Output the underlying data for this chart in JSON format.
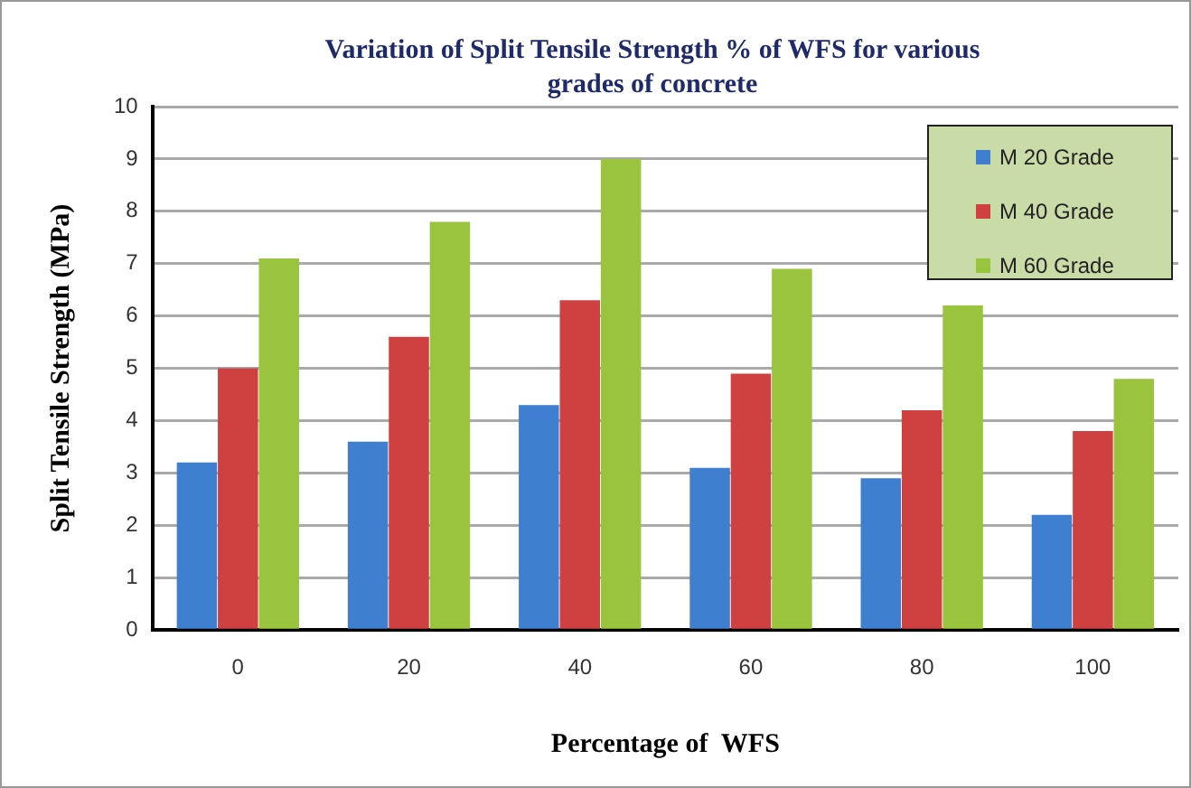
{
  "chart_data": {
    "type": "bar",
    "title": "Variation of Split Tensile Strength  % of WFS for various grades of concrete",
    "xlabel": "Percentage of  WFS",
    "ylabel": "Split Tensile Strength (MPa)",
    "categories": [
      "0",
      "20",
      "40",
      "60",
      "80",
      "100"
    ],
    "series": [
      {
        "name": "M 20 Grade",
        "color": "#3f7fcf",
        "values": [
          3.2,
          3.6,
          4.3,
          3.1,
          2.9,
          2.2
        ]
      },
      {
        "name": "M 40 Grade",
        "color": "#cf4040",
        "values": [
          5.0,
          5.6,
          6.3,
          4.9,
          4.2,
          3.8
        ]
      },
      {
        "name": "M 60 Grade",
        "color": "#9ac33e",
        "values": [
          7.1,
          7.8,
          9.0,
          6.9,
          6.2,
          4.8
        ]
      }
    ],
    "ylim": [
      0,
      10
    ],
    "yticks": [
      0,
      1,
      2,
      3,
      4,
      5,
      6,
      7,
      8,
      9,
      10
    ],
    "grid": "y",
    "legend": "top right"
  }
}
